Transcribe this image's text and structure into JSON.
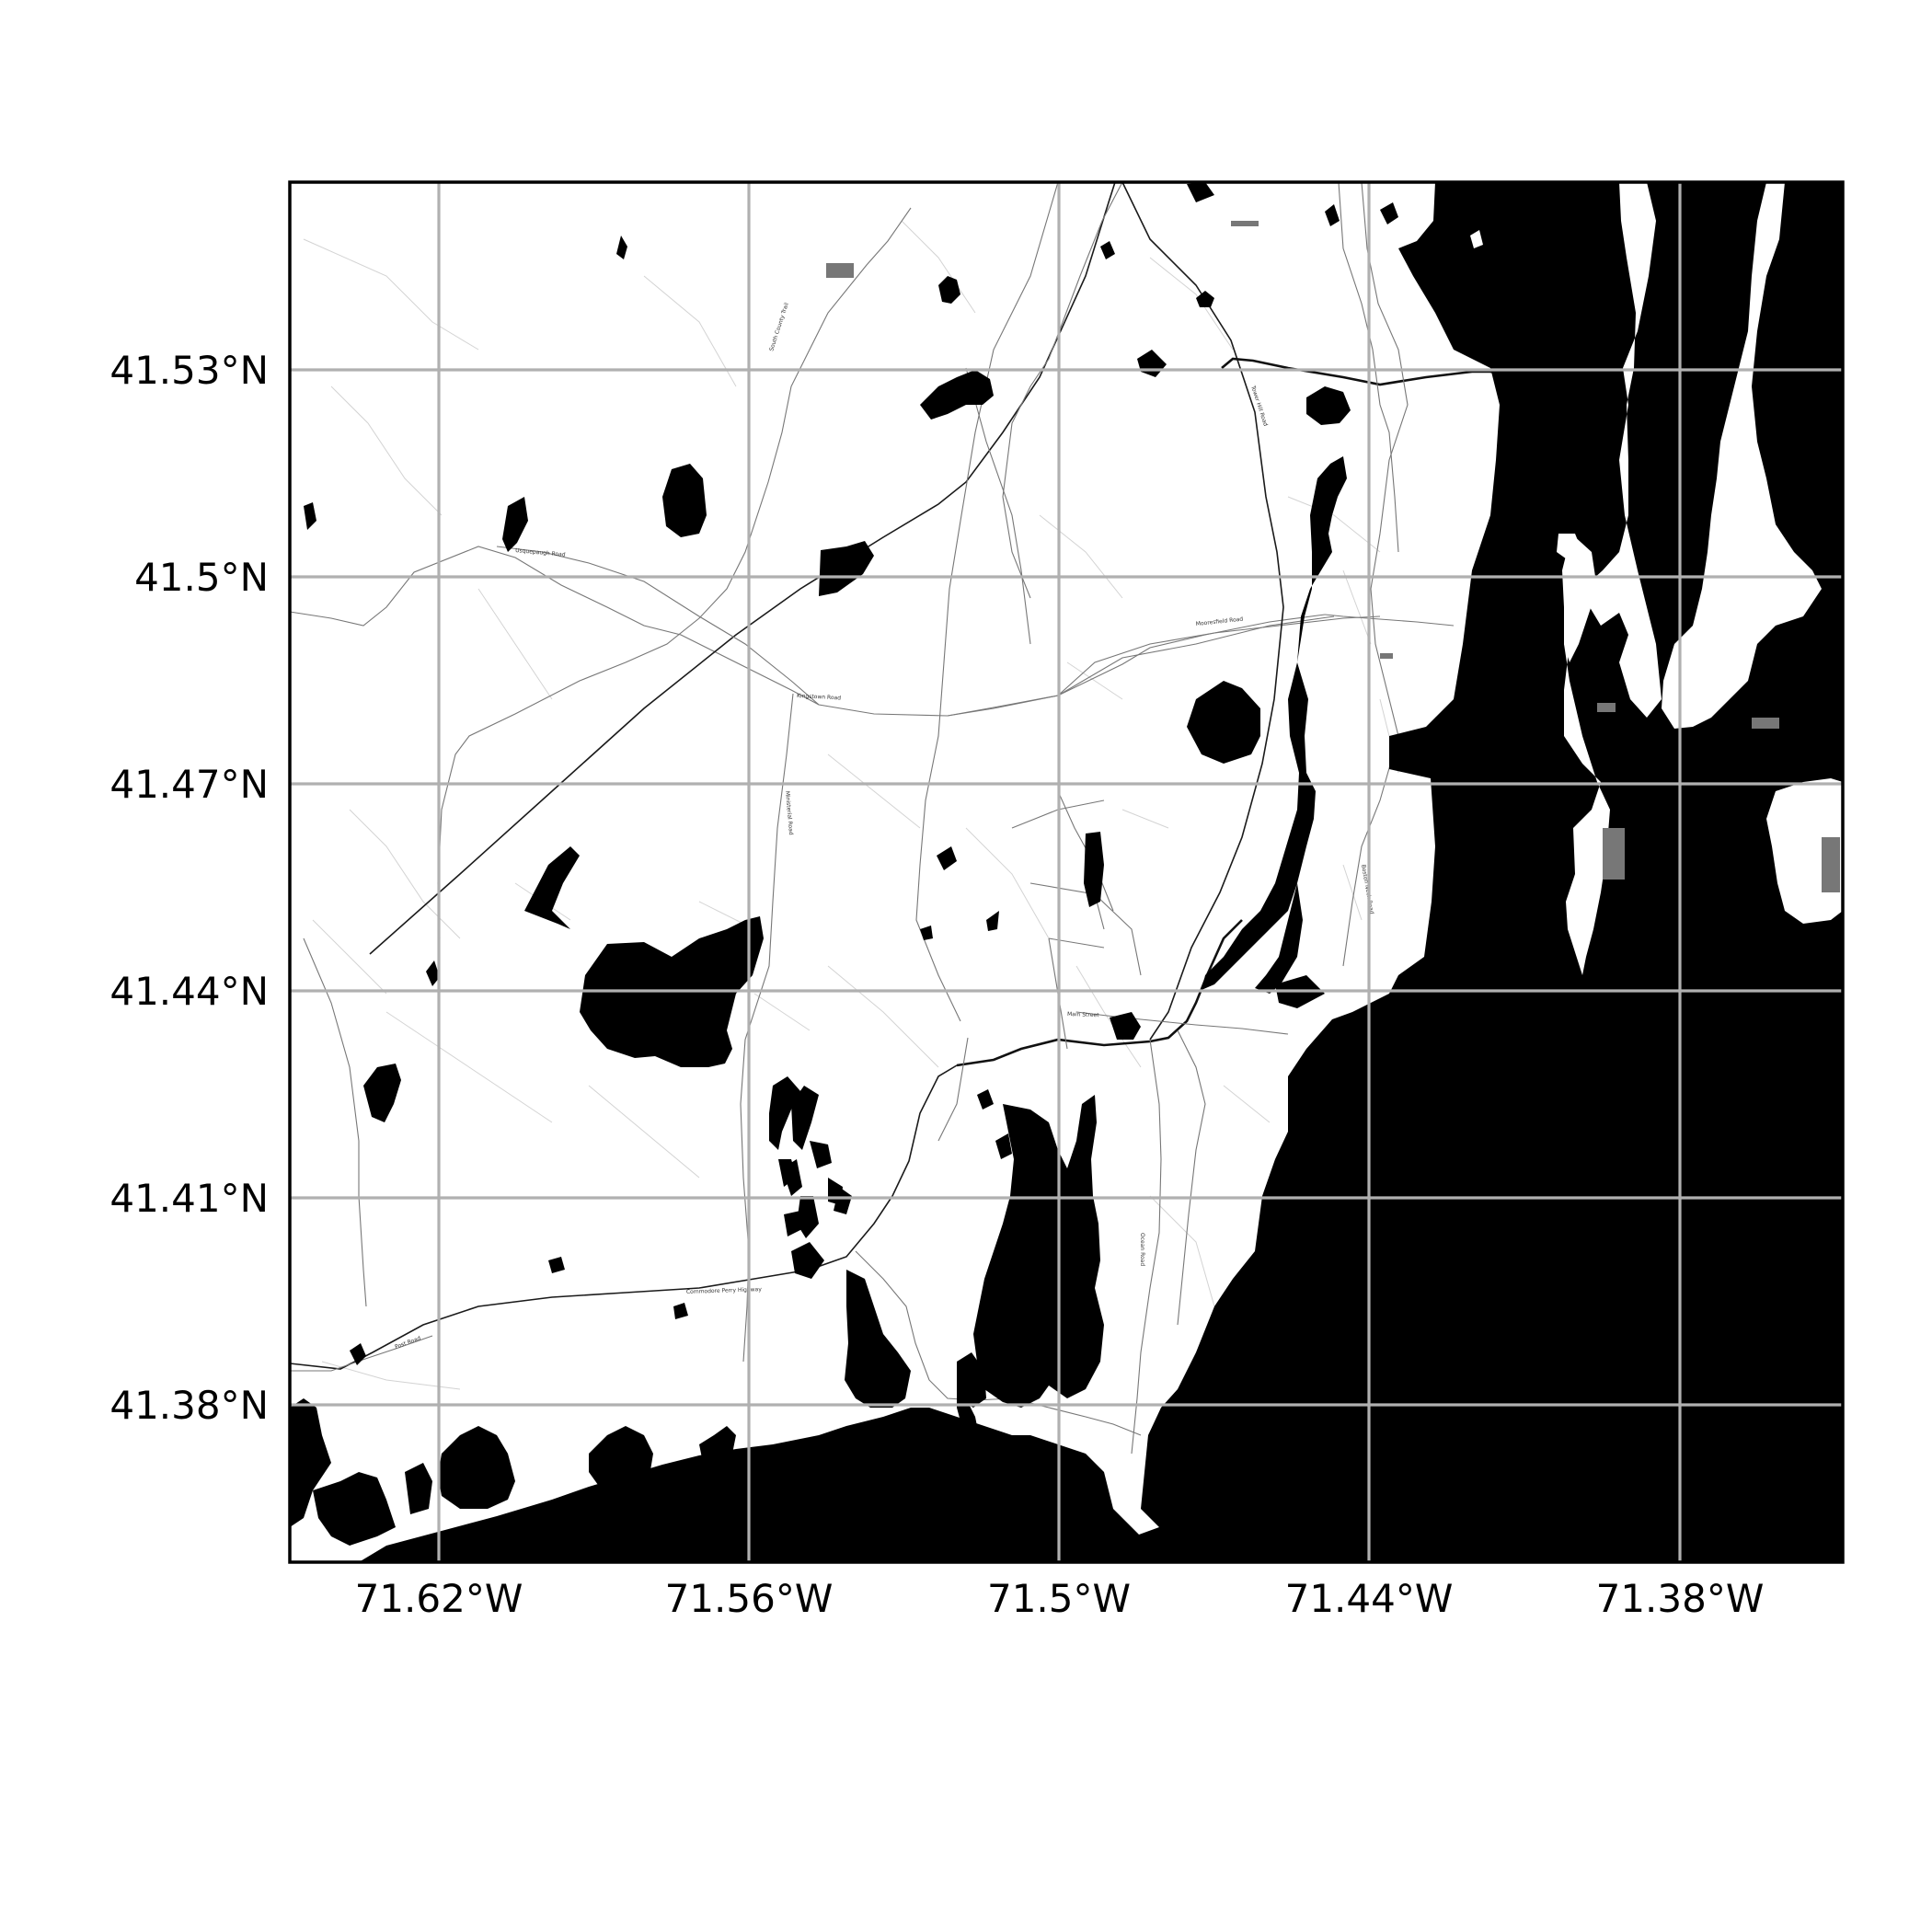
{
  "map": {
    "lat_ticks": [
      "41.53°N",
      "41.5°N",
      "41.47°N",
      "41.44°N",
      "41.41°N",
      "41.38°N"
    ],
    "lon_ticks": [
      "71.62°W",
      "71.56°W",
      "71.5°W",
      "71.44°W",
      "71.38°W"
    ],
    "colors": {
      "water": "#000000",
      "land": "#ffffff",
      "grid": "#b0b0b0",
      "frame": "#000000"
    },
    "road_labels": [
      "South County Trail",
      "Kingstown Road",
      "Usquepaugh Road",
      "Mooresfield Road",
      "Tower Hill Road",
      "Commodore Perry Highway",
      "Post Road",
      "Ministerial Road",
      "Ocean Road",
      "Main Street",
      "Boston Neck Road"
    ]
  }
}
